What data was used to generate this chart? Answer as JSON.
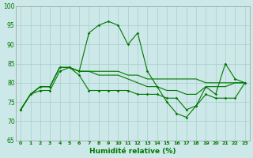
{
  "xlabel": "Humidité relative (%)",
  "background_color": "#cce8e8",
  "grid_color": "#aacccc",
  "line_color": "#007700",
  "xlim": [
    -0.5,
    23.5
  ],
  "ylim": [
    65,
    100
  ],
  "yticks": [
    65,
    70,
    75,
    80,
    85,
    90,
    95,
    100
  ],
  "xticks": [
    0,
    1,
    2,
    3,
    4,
    5,
    6,
    7,
    8,
    9,
    10,
    11,
    12,
    13,
    14,
    15,
    16,
    17,
    18,
    19,
    20,
    21,
    22,
    23
  ],
  "line1": [
    73,
    77,
    79,
    79,
    84,
    84,
    83,
    93,
    95,
    96,
    95,
    90,
    93,
    83,
    79,
    75,
    72,
    71,
    74,
    79,
    77,
    85,
    81,
    80
  ],
  "line2": [
    73,
    77,
    79,
    79,
    84,
    84,
    83,
    83,
    83,
    83,
    83,
    82,
    82,
    81,
    81,
    81,
    81,
    81,
    81,
    80,
    80,
    80,
    80,
    80
  ],
  "line3": [
    73,
    77,
    78,
    78,
    83,
    84,
    82,
    78,
    78,
    78,
    78,
    78,
    77,
    77,
    77,
    76,
    76,
    73,
    74,
    77,
    76,
    76,
    76,
    80
  ],
  "line4": [
    73,
    77,
    79,
    79,
    84,
    84,
    83,
    83,
    82,
    82,
    82,
    81,
    80,
    79,
    79,
    78,
    78,
    77,
    77,
    79,
    79,
    79,
    80,
    80
  ]
}
